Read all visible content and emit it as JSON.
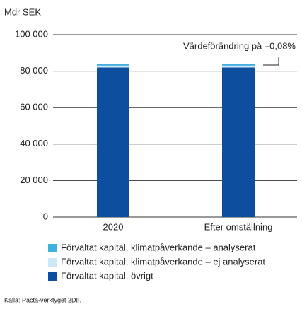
{
  "chart_data": {
    "type": "stacked_bar",
    "y_label": "Mdr SEK",
    "categories": [
      "2020",
      "Efter omställning"
    ],
    "series": [
      {
        "name": "Förvaltat kapital, klimatpåverkande – analyserat",
        "color": "#3fb0e0",
        "values": [
          1000,
          1000
        ]
      },
      {
        "name": "Förvaltat kapital, klimatpåverkande – ej analyserat",
        "color": "#cde8f6",
        "values": [
          1000,
          1000
        ]
      },
      {
        "name": "Förvaltat kapital, övrigt",
        "color": "#0d4f9e",
        "values": [
          82000,
          82000
        ]
      }
    ],
    "ylim": [
      0,
      100000
    ],
    "yticks": [
      0,
      {
        "value": 20000,
        "label": "20 000"
      },
      {
        "value": 40000,
        "label": "40 000"
      },
      {
        "value": 60000,
        "label": "60 000"
      },
      {
        "value": 80000,
        "label": "80 000"
      },
      {
        "value": 100000,
        "label": "100 000"
      }
    ],
    "grid": true,
    "annotation": "Värdeförändring på –0,08%",
    "source": "Källa: Pacta-verktyget 2DII."
  }
}
